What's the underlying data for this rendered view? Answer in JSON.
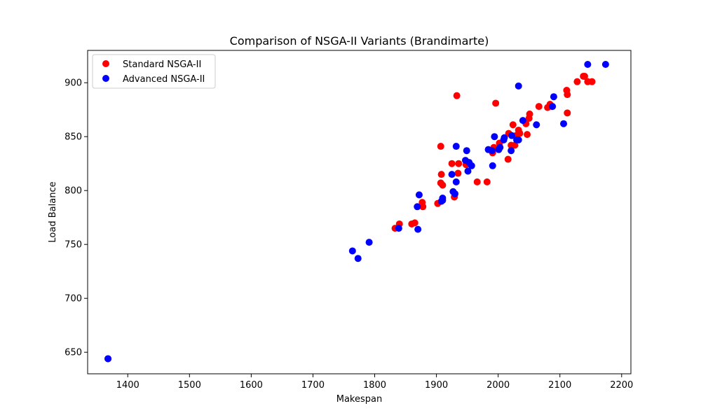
{
  "chart_data": {
    "type": "scatter",
    "title": "Comparison of NSGA-II Variants (Brandimarte)",
    "xlabel": "Makespan",
    "ylabel": "Load Balance",
    "xlim": [
      1335,
      2215
    ],
    "ylim": [
      630,
      930
    ],
    "xticks": [
      1400,
      1500,
      1600,
      1700,
      1800,
      1900,
      2000,
      2100,
      2200
    ],
    "yticks": [
      650,
      700,
      750,
      800,
      850,
      900
    ],
    "grid": false,
    "legend_position": "top-left",
    "series": [
      {
        "name": "Standard NSGA-II",
        "color": "#ff0000",
        "points": [
          [
            1368,
            644
          ],
          [
            1833,
            765
          ],
          [
            1840,
            769
          ],
          [
            1860,
            769
          ],
          [
            1865,
            770
          ],
          [
            1877,
            789
          ],
          [
            1878,
            785
          ],
          [
            1902,
            788
          ],
          [
            1907,
            841
          ],
          [
            1907,
            807
          ],
          [
            1908,
            815
          ],
          [
            1910,
            805
          ],
          [
            1925,
            825
          ],
          [
            1929,
            794
          ],
          [
            1933,
            888
          ],
          [
            1935,
            816
          ],
          [
            1936,
            825
          ],
          [
            1948,
            824
          ],
          [
            1953,
            825
          ],
          [
            1966,
            808
          ],
          [
            1982,
            808
          ],
          [
            1991,
            835
          ],
          [
            1993,
            840
          ],
          [
            1996,
            881
          ],
          [
            2002,
            844
          ],
          [
            2016,
            829
          ],
          [
            2017,
            853
          ],
          [
            2021,
            842
          ],
          [
            2024,
            861
          ],
          [
            2027,
            842
          ],
          [
            2029,
            851
          ],
          [
            2031,
            848
          ],
          [
            2033,
            856
          ],
          [
            2035,
            853
          ],
          [
            2045,
            862
          ],
          [
            2047,
            852
          ],
          [
            2050,
            867
          ],
          [
            2051,
            871
          ],
          [
            2066,
            878
          ],
          [
            2080,
            877
          ],
          [
            2084,
            880
          ],
          [
            2087,
            878
          ],
          [
            2111,
            893
          ],
          [
            2112,
            889
          ],
          [
            2112,
            872
          ],
          [
            2128,
            901
          ],
          [
            2138,
            906
          ],
          [
            2140,
            906
          ],
          [
            2145,
            901
          ],
          [
            2152,
            901
          ]
        ]
      },
      {
        "name": "Advanced NSGA-II",
        "color": "#0000ff",
        "points": [
          [
            1368,
            644
          ],
          [
            1764,
            744
          ],
          [
            1773,
            737
          ],
          [
            1791,
            752
          ],
          [
            1839,
            765
          ],
          [
            1869,
            785
          ],
          [
            1870,
            764
          ],
          [
            1872,
            796
          ],
          [
            1908,
            790
          ],
          [
            1910,
            793
          ],
          [
            1910,
            791
          ],
          [
            1925,
            815
          ],
          [
            1927,
            799
          ],
          [
            1930,
            797
          ],
          [
            1932,
            841
          ],
          [
            1932,
            808
          ],
          [
            1947,
            828
          ],
          [
            1949,
            837
          ],
          [
            1951,
            818
          ],
          [
            1953,
            826
          ],
          [
            1957,
            823
          ],
          [
            1984,
            838
          ],
          [
            1990,
            837
          ],
          [
            1991,
            823
          ],
          [
            1994,
            850
          ],
          [
            2001,
            838
          ],
          [
            2003,
            840
          ],
          [
            2009,
            847
          ],
          [
            2010,
            849
          ],
          [
            2021,
            837
          ],
          [
            2022,
            851
          ],
          [
            2030,
            847
          ],
          [
            2033,
            847
          ],
          [
            2033,
            897
          ],
          [
            2040,
            865
          ],
          [
            2062,
            861
          ],
          [
            2088,
            878
          ],
          [
            2090,
            887
          ],
          [
            2106,
            862
          ],
          [
            2145,
            917
          ],
          [
            2174,
            917
          ]
        ]
      }
    ]
  }
}
